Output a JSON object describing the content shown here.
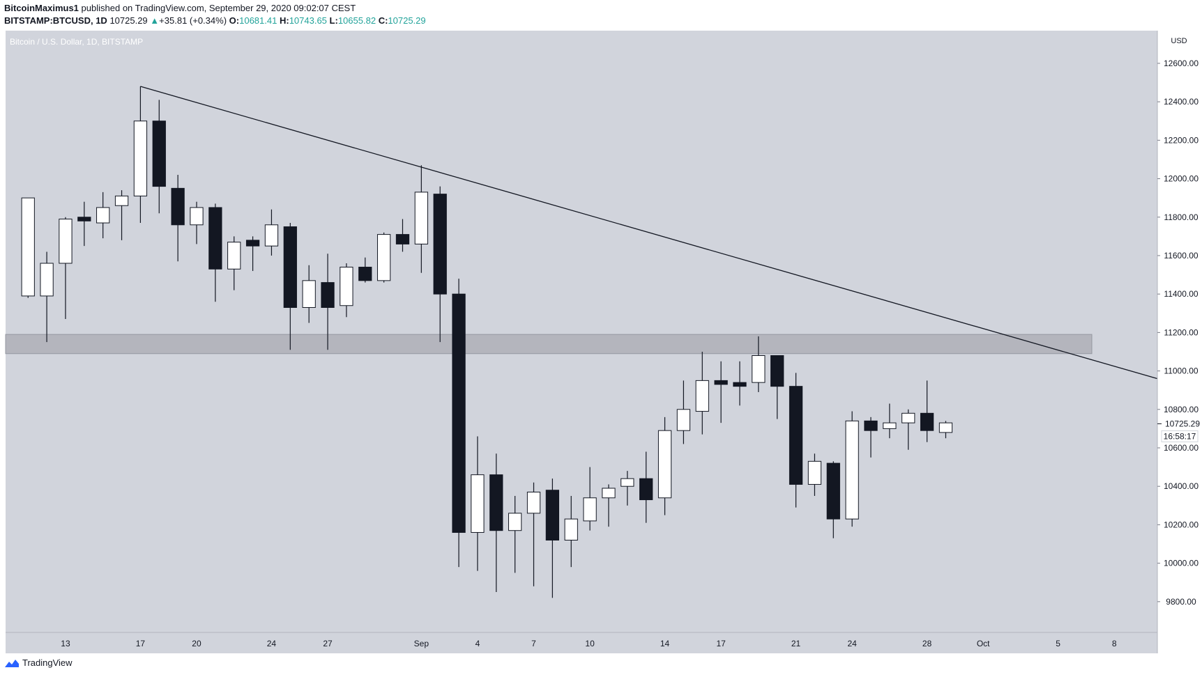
{
  "header": {
    "author": "BitcoinMaximus1",
    "published_text": "published on TradingView.com, September 29, 2020 09:02:07 CEST",
    "symbol": "BITSTAMP:BTCUSD, 1D",
    "last": "10725.29",
    "change": "+35.81 (+0.34%)",
    "o_label": "O:",
    "o": "10681.41",
    "h_label": "H:",
    "h": "10743.65",
    "l_label": "L:",
    "l": "10655.82",
    "c_label": "C:",
    "c": "10725.29"
  },
  "footer": {
    "brand": "TradingView"
  },
  "colors": {
    "plot_bg": "#d1d4dc",
    "up": "#ffffff",
    "down": "#131722",
    "wick": "#131722",
    "zone": "#a9abb3",
    "price_up": "#22a39a"
  },
  "chart_data": {
    "type": "candlestick",
    "title": "Bitcoin / U.S. Dollar, 1D, BITSTAMP",
    "y_unit": "USD",
    "ylim": [
      9640,
      12770
    ],
    "y_ticks": [
      "12600.00",
      "12400.00",
      "12200.00",
      "12000.00",
      "11800.00",
      "11600.00",
      "11400.00",
      "11200.00",
      "11000.00",
      "10800.00",
      "10600.00",
      "10400.00",
      "10200.00",
      "10000.00",
      "9800.00"
    ],
    "y_tick_values": [
      12600,
      12400,
      12200,
      12000,
      11800,
      11600,
      11400,
      11200,
      11000,
      10800,
      10600,
      10400,
      10200,
      10000,
      9800
    ],
    "x_ticks": [
      {
        "label": "13",
        "index": 2
      },
      {
        "label": "17",
        "index": 6
      },
      {
        "label": "20",
        "index": 9
      },
      {
        "label": "24",
        "index": 13
      },
      {
        "label": "27",
        "index": 16
      },
      {
        "label": "Sep",
        "index": 21
      },
      {
        "label": "4",
        "index": 24
      },
      {
        "label": "7",
        "index": 27
      },
      {
        "label": "10",
        "index": 30
      },
      {
        "label": "14",
        "index": 34
      },
      {
        "label": "17",
        "index": 37
      },
      {
        "label": "21",
        "index": 41
      },
      {
        "label": "24",
        "index": 44
      },
      {
        "label": "28",
        "index": 48
      },
      {
        "label": "Oct",
        "index": 51
      },
      {
        "label": "5",
        "index": 55
      },
      {
        "label": "8",
        "index": 58
      }
    ],
    "candles": [
      {
        "o": 11390,
        "h": 11900,
        "l": 11380,
        "c": 11900
      },
      {
        "o": 11390,
        "h": 11620,
        "l": 11150,
        "c": 11560
      },
      {
        "o": 11560,
        "h": 11800,
        "l": 11270,
        "c": 11790
      },
      {
        "o": 11800,
        "h": 11880,
        "l": 11650,
        "c": 11780
      },
      {
        "o": 11770,
        "h": 11930,
        "l": 11690,
        "c": 11850
      },
      {
        "o": 11860,
        "h": 11940,
        "l": 11680,
        "c": 11910
      },
      {
        "o": 11910,
        "h": 12480,
        "l": 11770,
        "c": 12300
      },
      {
        "o": 12300,
        "h": 12410,
        "l": 11820,
        "c": 11960
      },
      {
        "o": 11950,
        "h": 12020,
        "l": 11570,
        "c": 11760
      },
      {
        "o": 11760,
        "h": 11880,
        "l": 11660,
        "c": 11850
      },
      {
        "o": 11850,
        "h": 11870,
        "l": 11360,
        "c": 11530
      },
      {
        "o": 11530,
        "h": 11700,
        "l": 11420,
        "c": 11670
      },
      {
        "o": 11680,
        "h": 11700,
        "l": 11520,
        "c": 11650
      },
      {
        "o": 11650,
        "h": 11840,
        "l": 11600,
        "c": 11760
      },
      {
        "o": 11750,
        "h": 11770,
        "l": 11110,
        "c": 11330
      },
      {
        "o": 11330,
        "h": 11550,
        "l": 11250,
        "c": 11470
      },
      {
        "o": 11460,
        "h": 11610,
        "l": 11110,
        "c": 11330
      },
      {
        "o": 11340,
        "h": 11560,
        "l": 11280,
        "c": 11540
      },
      {
        "o": 11540,
        "h": 11590,
        "l": 11460,
        "c": 11470
      },
      {
        "o": 11470,
        "h": 11720,
        "l": 11460,
        "c": 11710
      },
      {
        "o": 11710,
        "h": 11790,
        "l": 11620,
        "c": 11660
      },
      {
        "o": 11660,
        "h": 12070,
        "l": 11510,
        "c": 11930
      },
      {
        "o": 11920,
        "h": 11960,
        "l": 11150,
        "c": 11400
      },
      {
        "o": 11400,
        "h": 11480,
        "l": 9980,
        "c": 10160
      },
      {
        "o": 10160,
        "h": 10660,
        "l": 9960,
        "c": 10460
      },
      {
        "o": 10460,
        "h": 10570,
        "l": 9850,
        "c": 10170
      },
      {
        "o": 10170,
        "h": 10350,
        "l": 9950,
        "c": 10260
      },
      {
        "o": 10260,
        "h": 10420,
        "l": 9880,
        "c": 10370
      },
      {
        "o": 10380,
        "h": 10440,
        "l": 9820,
        "c": 10120
      },
      {
        "o": 10120,
        "h": 10350,
        "l": 9980,
        "c": 10230
      },
      {
        "o": 10220,
        "h": 10500,
        "l": 10170,
        "c": 10340
      },
      {
        "o": 10340,
        "h": 10410,
        "l": 10190,
        "c": 10390
      },
      {
        "o": 10400,
        "h": 10480,
        "l": 10300,
        "c": 10440
      },
      {
        "o": 10440,
        "h": 10580,
        "l": 10210,
        "c": 10330
      },
      {
        "o": 10340,
        "h": 10760,
        "l": 10250,
        "c": 10690
      },
      {
        "o": 10690,
        "h": 10950,
        "l": 10620,
        "c": 10800
      },
      {
        "o": 10790,
        "h": 11100,
        "l": 10670,
        "c": 10950
      },
      {
        "o": 10950,
        "h": 11050,
        "l": 10730,
        "c": 10930
      },
      {
        "o": 10940,
        "h": 11050,
        "l": 10820,
        "c": 10920
      },
      {
        "o": 10940,
        "h": 11180,
        "l": 10890,
        "c": 11080
      },
      {
        "o": 11080,
        "h": 11080,
        "l": 10750,
        "c": 10920
      },
      {
        "o": 10920,
        "h": 10990,
        "l": 10290,
        "c": 10410
      },
      {
        "o": 10410,
        "h": 10570,
        "l": 10350,
        "c": 10530
      },
      {
        "o": 10520,
        "h": 10530,
        "l": 10130,
        "c": 10230
      },
      {
        "o": 10230,
        "h": 10790,
        "l": 10190,
        "c": 10740
      },
      {
        "o": 10740,
        "h": 10760,
        "l": 10550,
        "c": 10690
      },
      {
        "o": 10700,
        "h": 10830,
        "l": 10650,
        "c": 10730
      },
      {
        "o": 10730,
        "h": 10800,
        "l": 10590,
        "c": 10780
      },
      {
        "o": 10780,
        "h": 10950,
        "l": 10630,
        "c": 10690
      },
      {
        "o": 10680,
        "h": 10740,
        "l": 10650,
        "c": 10730
      }
    ],
    "first_index": 0,
    "index_range": [
      -1.2,
      60.3
    ],
    "zone": {
      "from_index": -1.2,
      "to_index": 56.8,
      "low": 11090,
      "high": 11190
    },
    "trendline": {
      "start_index": 6,
      "start_price": 12480,
      "end_index": 60.3,
      "end_price": 10960
    },
    "last_price_label": "10725.29",
    "countdown_label": "16:58:17"
  }
}
